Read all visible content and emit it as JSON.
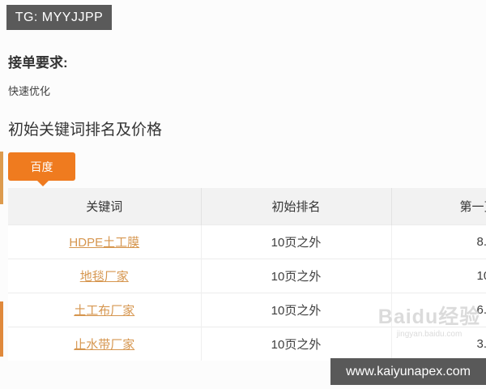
{
  "badge": {
    "text": "TG: MYYJJPP"
  },
  "sections": {
    "requirements_title": "接单要求:",
    "requirements_value": "快速优化",
    "pricing_title": "初始关键词排名及价格"
  },
  "tabs": {
    "active_label": "百度"
  },
  "table": {
    "columns": [
      "关键词",
      "初始排名",
      "第一页"
    ],
    "rows": [
      {
        "keyword": "HDPE土工膜",
        "rank": "10页之外",
        "price": "8."
      },
      {
        "keyword": "地毯厂家",
        "rank": "10页之外",
        "price": "10"
      },
      {
        "keyword": "土工布厂家",
        "rank": "10页之外",
        "price": "6."
      },
      {
        "keyword": "止水带厂家",
        "rank": "10页之外",
        "price": "3."
      }
    ]
  },
  "watermark": {
    "brand": "Baidu经验",
    "url": "jingyan.baidu.com"
  },
  "footer": {
    "site": "www.kaiyunapex.com"
  },
  "colors": {
    "accent_orange": "#ef7b1f",
    "link_orange": "#d6964f",
    "badge_gray": "#5a5a5a",
    "footer_gray": "#595959",
    "header_bg": "#f2f2f2"
  }
}
